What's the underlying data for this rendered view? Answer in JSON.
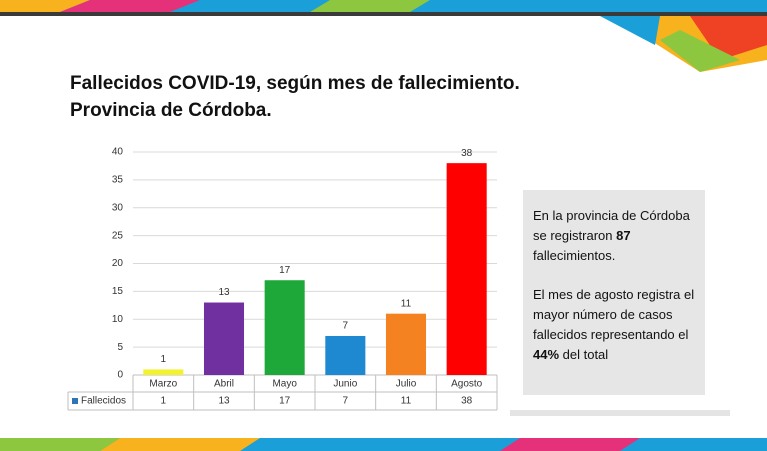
{
  "chart_data": {
    "type": "bar",
    "title": "Fallecidos COVID-19, según mes de fallecimiento.",
    "subtitle": "Provincia de Córdoba.",
    "categories": [
      "Marzo",
      "Abril",
      "Mayo",
      "Junio",
      "Julio",
      "Agosto"
    ],
    "series": [
      {
        "name": "Fallecidos",
        "color": "#2e75b6",
        "values": [
          1,
          13,
          17,
          7,
          11,
          38
        ]
      }
    ],
    "bar_colors": [
      "#f2f230",
      "#7030a0",
      "#1fa83a",
      "#1e88d0",
      "#f58220",
      "#ff0000"
    ],
    "ylim": [
      0,
      40
    ],
    "yticks": [
      0,
      5,
      10,
      15,
      20,
      25,
      30,
      35,
      40
    ],
    "grid": true
  },
  "note": {
    "paragraphs": [
      [
        {
          "text": "En la provincia de Córdoba se registraron "
        },
        {
          "text": "87",
          "bold": true
        },
        {
          "text": "  fallecimientos."
        }
      ],
      [
        {
          "text": "El mes de agosto registra el mayor número de casos fallecidos representando el "
        },
        {
          "text": "44%",
          "bold": true
        },
        {
          "text": " del total"
        }
      ]
    ]
  }
}
